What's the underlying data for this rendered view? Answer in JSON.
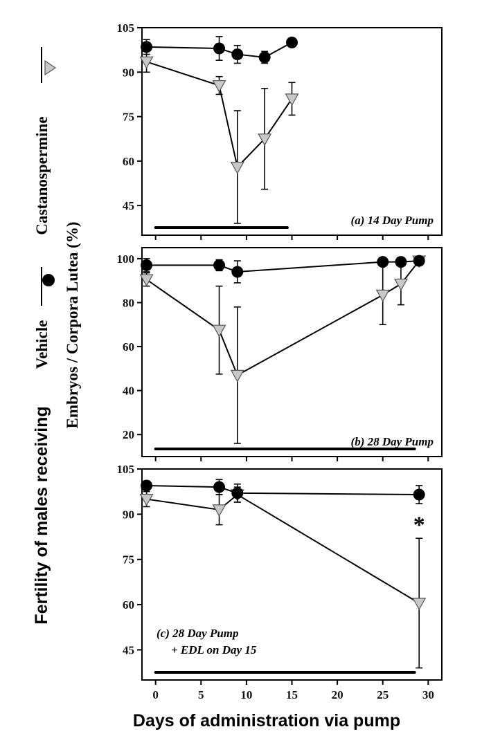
{
  "figure": {
    "y_title_outer": "Fertility of males receiving",
    "legend": {
      "vehicle_label": "Vehicle",
      "cast_label": "Castanospermine"
    },
    "y_title_inner": "Embryos / Corpora Lutea (%)",
    "x_title": "Days of administration via pump",
    "x_ticks": [
      "0",
      "5",
      "10",
      "15",
      "20",
      "25",
      "30"
    ]
  },
  "colors": {
    "vehicle": "#000000",
    "castanospermine": "#c8c8c8"
  },
  "chart_data": [
    {
      "type": "line",
      "panel_label": "(a) 14 Day Pump",
      "xlim": [
        -1.5,
        31.5
      ],
      "ylim": [
        35,
        105
      ],
      "y_ticks": [
        45,
        60,
        75,
        90,
        105
      ],
      "treatment_bar": [
        0,
        14.5
      ],
      "series": [
        {
          "name": "Vehicle",
          "marker": "circle",
          "x": [
            -1,
            7,
            9,
            12,
            15
          ],
          "y": [
            98.5,
            98,
            96,
            95,
            100
          ],
          "err": [
            2.5,
            4,
            3,
            2,
            0
          ]
        },
        {
          "name": "Castanospermine",
          "marker": "triangle-down",
          "x": [
            -1,
            7,
            9,
            12,
            15
          ],
          "y": [
            93.5,
            85.5,
            58,
            67.5,
            81
          ],
          "err": [
            3.5,
            3,
            19,
            17,
            5.5
          ]
        }
      ]
    },
    {
      "type": "line",
      "panel_label": "(b) 28 Day Pump",
      "xlim": [
        -1.5,
        31.5
      ],
      "ylim": [
        10,
        105
      ],
      "y_ticks": [
        20,
        40,
        60,
        80,
        100
      ],
      "treatment_bar": [
        0,
        28.5
      ],
      "series": [
        {
          "name": "Vehicle",
          "marker": "circle",
          "x": [
            -1,
            7,
            9,
            25,
            27,
            29
          ],
          "y": [
            97,
            97,
            94,
            98.5,
            98.5,
            99
          ],
          "err": [
            3,
            2.5,
            5,
            0,
            0,
            0
          ]
        },
        {
          "name": "Castanospermine",
          "marker": "triangle-down",
          "x": [
            -1,
            7,
            9,
            25,
            27,
            29
          ],
          "y": [
            90.5,
            67.5,
            47,
            83.5,
            88.5,
            99
          ],
          "err": [
            3,
            20,
            31,
            13.5,
            9.5,
            0
          ]
        }
      ]
    },
    {
      "type": "line",
      "panel_label": "(c) 28 Day Pump",
      "panel_label_line2": "+ EDL on Day 15",
      "annotation": "*",
      "xlim": [
        -1.5,
        31.5
      ],
      "ylim": [
        35,
        105
      ],
      "y_ticks": [
        45,
        60,
        75,
        90,
        105
      ],
      "treatment_bar": [
        0,
        28.5
      ],
      "series": [
        {
          "name": "Vehicle",
          "marker": "circle",
          "x": [
            -1,
            7,
            9,
            29
          ],
          "y": [
            99.5,
            99,
            97,
            96.5
          ],
          "err": [
            1.5,
            2.5,
            3,
            3
          ]
        },
        {
          "name": "Castanospermine",
          "marker": "triangle-down",
          "x": [
            -1,
            7,
            9,
            29
          ],
          "y": [
            95,
            91.5,
            96.5,
            60.5
          ],
          "err": [
            2.5,
            5,
            2.5,
            21.5
          ]
        }
      ]
    }
  ]
}
